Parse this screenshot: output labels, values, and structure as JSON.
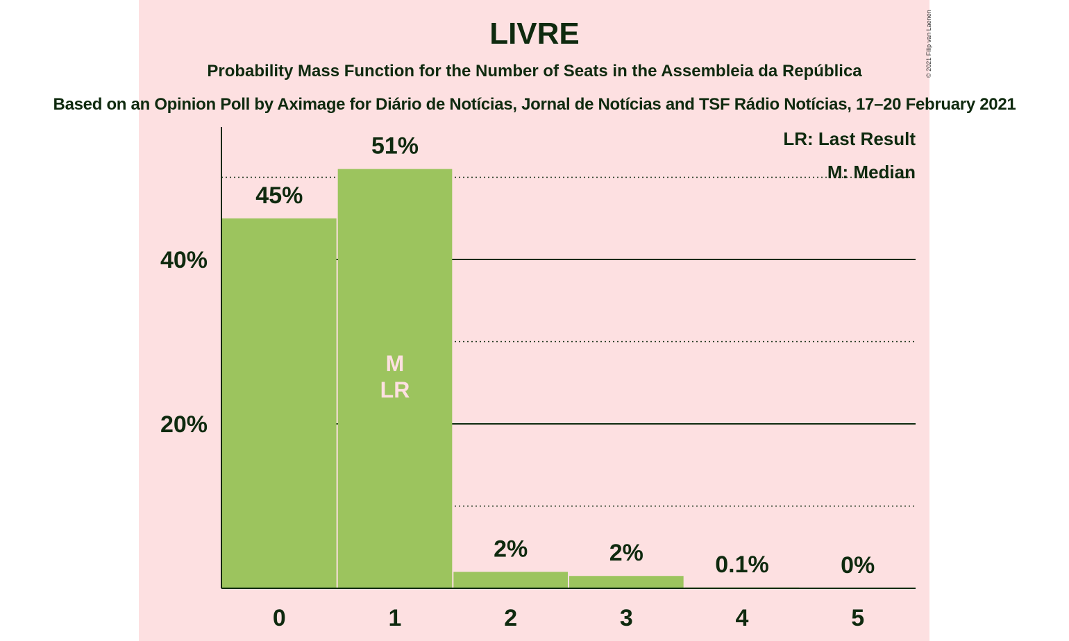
{
  "header": {
    "title": "LIVRE",
    "subtitle": "Probability Mass Function for the Number of Seats in the Assembleia da República",
    "source": "Based on an Opinion Poll by Aximage for Diário de Notícias, Jornal de Notícias and TSF Rádio Notícias, 17–20 February 2021",
    "copyright": "© 2021 Filip van Laenen"
  },
  "legend": {
    "last_result": "LR: Last Result",
    "median": "M: Median"
  },
  "colors": {
    "background": "#fde0e1",
    "bar": "#9cc45e",
    "text": "#0f2a0f",
    "marker_text": "#fde0e1"
  },
  "chart_data": {
    "type": "bar",
    "categories": [
      "0",
      "1",
      "2",
      "3",
      "4",
      "5"
    ],
    "values": [
      45,
      51,
      2,
      1.5,
      0.1,
      0
    ],
    "value_labels": [
      "45%",
      "51%",
      "2%",
      "2%",
      "0.1%",
      "0%"
    ],
    "bar_markers": [
      "",
      "M\nLR",
      "",
      "",
      "",
      ""
    ],
    "ylim": [
      0,
      56
    ],
    "y_ticks_labeled": [
      {
        "value": 20,
        "label": "20%"
      },
      {
        "value": 40,
        "label": "40%"
      }
    ],
    "y_gridlines_solid": [
      20,
      40
    ],
    "y_gridlines_dotted": [
      10,
      30,
      50
    ],
    "xlabel": "",
    "ylabel": "",
    "legend_position": "top-right"
  }
}
